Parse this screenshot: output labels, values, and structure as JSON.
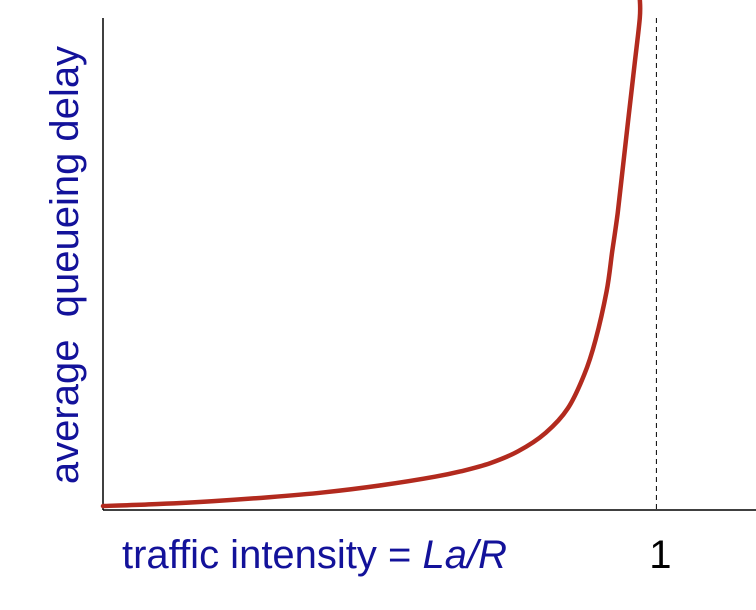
{
  "chart_data": {
    "type": "line",
    "xlabel_prefix": "traffic intensity = ",
    "xlabel_formula": "La/R",
    "ylabel": "average  queueing delay",
    "x_ticks": [
      1
    ],
    "x_tick_labels": [
      "1"
    ],
    "reference_line_x": 1,
    "xlim": [
      0,
      1.18
    ],
    "ylim": [
      0,
      1
    ],
    "grid": false,
    "series": [
      {
        "color": "#b22a1e",
        "x": [
          0.0,
          0.1,
          0.2,
          0.3,
          0.4,
          0.5,
          0.6,
          0.65,
          0.7,
          0.75,
          0.8,
          0.84,
          0.87,
          0.89,
          0.91,
          0.92,
          0.93,
          0.94,
          0.95,
          0.96,
          0.97,
          0.97
        ],
        "y": [
          0.0,
          0.004,
          0.01,
          0.018,
          0.028,
          0.042,
          0.06,
          0.072,
          0.088,
          0.112,
          0.15,
          0.2,
          0.27,
          0.34,
          0.44,
          0.52,
          0.6,
          0.7,
          0.8,
          0.9,
          1.0,
          1.04
        ]
      }
    ]
  },
  "colors": {
    "curve": "#b22a1e",
    "label": "#13129a",
    "axis": "#000000"
  }
}
